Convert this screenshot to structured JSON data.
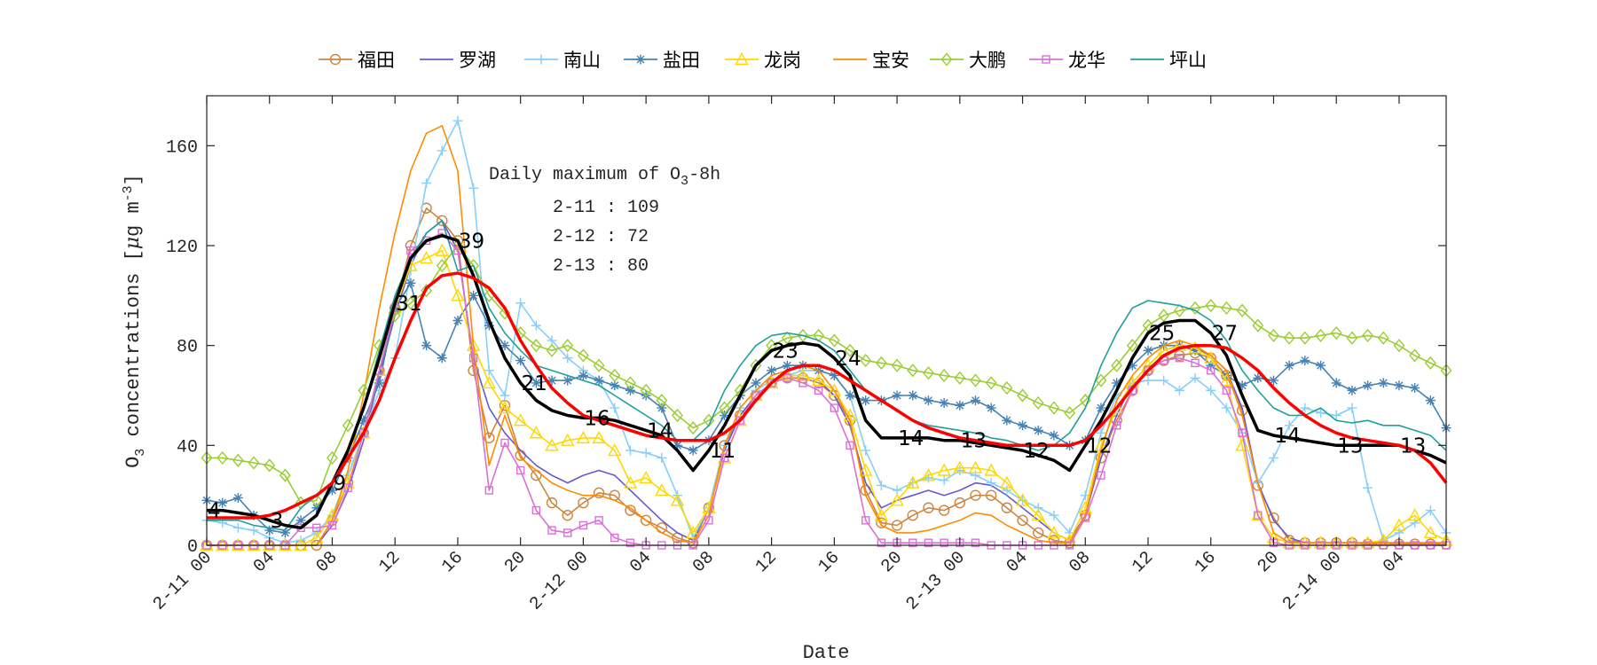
{
  "chart_data": {
    "type": "line",
    "xlabel": "Date",
    "ylabel": "O3 concentrations [μg m-3]",
    "ylabel_parts": {
      "main": "O",
      "sub": "3",
      "rest": " concentrations [",
      "mu": "μ",
      "unit": "g m",
      "sup": "-3",
      "end": "]"
    },
    "xlim_hours": [
      0,
      79
    ],
    "ylim": [
      0,
      180
    ],
    "yticks": [
      0,
      40,
      80,
      120,
      160
    ],
    "xtick_hours": [
      0,
      4,
      8,
      12,
      16,
      20,
      24,
      28,
      32,
      36,
      40,
      44,
      48,
      52,
      56,
      60,
      64,
      68,
      72,
      76
    ],
    "xtick_labels": [
      "2-11 00",
      "04",
      "08",
      "12",
      "16",
      "20",
      "2-12 00",
      "04",
      "08",
      "12",
      "16",
      "20",
      "2-13 00",
      "04",
      "08",
      "12",
      "16",
      "20",
      "2-14 00",
      "04"
    ],
    "x_start": "2-11 00",
    "x_step": "1 hour",
    "grid": false,
    "legend_position": "top, outside, horizontal",
    "series": [
      {
        "name": "福田",
        "color": "#cd853f",
        "marker": "circle",
        "values": [
          0,
          0,
          0,
          0,
          0,
          0,
          0,
          0,
          10,
          25,
          45,
          70,
          95,
          120,
          135,
          130,
          122,
          70,
          43,
          56,
          36,
          28,
          17,
          12,
          17,
          21,
          20,
          14,
          10,
          7,
          3,
          1,
          15,
          40,
          52,
          60,
          65,
          67,
          67,
          65,
          60,
          50,
          22,
          9,
          8,
          12,
          15,
          14,
          17,
          20,
          20,
          15,
          10,
          5,
          2,
          1,
          12,
          35,
          50,
          62,
          70,
          74,
          76,
          77,
          75,
          68,
          54,
          24,
          11,
          2,
          1,
          1,
          1,
          1,
          0.5,
          0.5,
          0.5,
          0.5,
          0.5,
          0.5
        ]
      },
      {
        "name": "罗湖",
        "color": "#6a5acd",
        "marker": "none",
        "values": [
          0,
          0,
          0,
          0,
          0,
          0,
          0,
          0,
          8,
          22,
          42,
          68,
          92,
          112,
          125,
          130,
          118,
          75,
          55,
          45,
          38,
          32,
          28,
          25,
          28,
          30,
          28,
          22,
          16,
          10,
          5,
          2,
          15,
          38,
          52,
          60,
          65,
          68,
          68,
          66,
          60,
          48,
          25,
          15,
          18,
          20,
          22,
          20,
          22,
          25,
          24,
          20,
          15,
          10,
          5,
          2,
          12,
          35,
          52,
          65,
          72,
          78,
          80,
          79,
          76,
          70,
          55,
          25,
          10,
          3,
          1,
          1,
          1,
          1,
          1,
          1,
          1,
          1,
          1,
          1
        ]
      },
      {
        "name": "南山",
        "color": "#87cefa",
        "marker": "plus",
        "values": [
          10,
          9,
          7,
          6,
          3,
          1,
          2,
          5,
          12,
          28,
          45,
          62,
          75,
          110,
          145,
          158,
          170,
          143,
          70,
          60,
          97,
          88,
          82,
          75,
          70,
          66,
          55,
          38,
          37,
          35,
          20,
          3,
          15,
          40,
          55,
          62,
          66,
          68,
          70,
          70,
          68,
          60,
          38,
          24,
          22,
          25,
          27,
          26,
          30,
          28,
          25,
          22,
          18,
          15,
          12,
          5,
          20,
          45,
          60,
          65,
          66,
          66,
          62,
          67,
          62,
          55,
          45,
          25,
          35,
          48,
          55,
          53,
          52,
          55,
          23,
          2,
          5,
          9,
          14,
          5
        ]
      },
      {
        "name": "盐田",
        "color": "#4682b4",
        "marker": "star",
        "values": [
          18,
          17,
          19,
          12,
          6,
          5,
          10,
          15,
          22,
          35,
          50,
          65,
          95,
          105,
          80,
          75,
          90,
          100,
          88,
          80,
          74,
          65,
          66,
          66,
          68,
          66,
          64,
          62,
          60,
          55,
          40,
          38,
          42,
          52,
          60,
          65,
          70,
          72,
          72,
          70,
          68,
          60,
          58,
          58,
          60,
          60,
          58,
          57,
          56,
          58,
          55,
          50,
          48,
          46,
          44,
          40,
          42,
          55,
          65,
          72,
          78,
          80,
          80,
          78,
          72,
          68,
          64,
          67,
          66,
          72,
          74,
          72,
          65,
          62,
          64,
          65,
          64,
          63,
          58,
          47
        ]
      },
      {
        "name": "龙岗",
        "color": "#ffd700",
        "marker": "triangle",
        "values": [
          0,
          0,
          0,
          0,
          0,
          0,
          0,
          3,
          12,
          25,
          45,
          70,
          95,
          112,
          115,
          118,
          100,
          80,
          65,
          55,
          50,
          45,
          40,
          42,
          43,
          43,
          38,
          25,
          27,
          22,
          18,
          5,
          15,
          35,
          50,
          60,
          65,
          68,
          68,
          66,
          62,
          52,
          30,
          12,
          18,
          25,
          28,
          30,
          31,
          31,
          30,
          25,
          18,
          12,
          5,
          2,
          15,
          40,
          55,
          65,
          72,
          78,
          80,
          79,
          75,
          66,
          40,
          12,
          3,
          1,
          1,
          1,
          1,
          1,
          1,
          2,
          8,
          12,
          5,
          2
        ]
      },
      {
        "name": "宝安",
        "color": "#ff8c00",
        "marker": "none",
        "values": [
          0,
          0,
          0,
          0,
          0,
          0,
          0,
          0,
          10,
          30,
          60,
          95,
          125,
          150,
          165,
          168,
          150,
          80,
          32,
          52,
          35,
          30,
          25,
          22,
          20,
          20,
          18,
          15,
          10,
          5,
          2,
          1,
          12,
          40,
          55,
          62,
          68,
          70,
          72,
          70,
          62,
          50,
          20,
          8,
          5,
          5,
          6,
          8,
          10,
          13,
          12,
          8,
          5,
          2,
          1,
          1,
          12,
          38,
          58,
          68,
          75,
          80,
          82,
          80,
          76,
          70,
          52,
          25,
          5,
          1,
          1,
          1,
          1,
          1,
          1,
          1,
          1,
          1,
          1,
          1
        ]
      },
      {
        "name": "大鹏",
        "color": "#9acd32",
        "marker": "diamond",
        "values": [
          35,
          35,
          34,
          33,
          32,
          28,
          17,
          18,
          35,
          48,
          62,
          80,
          92,
          97,
          102,
          112,
          120,
          112,
          100,
          93,
          85,
          80,
          78,
          80,
          76,
          72,
          68,
          65,
          62,
          58,
          52,
          47,
          50,
          55,
          62,
          72,
          80,
          83,
          84,
          84,
          82,
          78,
          74,
          73,
          72,
          70,
          69,
          68,
          67,
          66,
          65,
          63,
          60,
          57,
          55,
          53,
          58,
          66,
          72,
          80,
          88,
          92,
          94,
          95,
          96,
          95,
          94,
          88,
          84,
          83,
          83,
          84,
          85,
          83,
          84,
          83,
          80,
          76,
          73,
          70
        ]
      },
      {
        "name": "龙华",
        "color": "#da70d6",
        "marker": "square",
        "values": [
          0,
          0,
          0,
          0,
          0,
          0,
          7,
          7,
          8,
          23,
          45,
          70,
          95,
          118,
          122,
          125,
          118,
          75,
          22,
          41,
          30,
          14,
          6,
          5,
          8,
          10,
          3,
          1,
          0,
          0,
          0,
          0,
          10,
          35,
          50,
          60,
          65,
          67,
          65,
          62,
          55,
          40,
          10,
          1,
          1,
          1,
          1,
          1,
          1,
          1,
          0,
          0,
          0,
          0,
          0,
          0,
          11,
          28,
          48,
          62,
          70,
          74,
          75,
          73,
          70,
          62,
          45,
          12,
          1,
          0,
          0,
          0,
          0,
          0,
          0,
          0,
          0,
          0,
          0,
          0
        ]
      },
      {
        "name": "坪山",
        "color": "#20a09a",
        "marker": "none",
        "values": [
          10,
          10,
          10,
          8,
          7,
          6,
          15,
          20,
          25,
          38,
          55,
          78,
          100,
          115,
          125,
          130,
          110,
          112,
          95,
          85,
          78,
          72,
          70,
          68,
          66,
          64,
          60,
          56,
          52,
          48,
          42,
          42,
          48,
          62,
          72,
          80,
          84,
          85,
          84,
          82,
          78,
          70,
          62,
          58,
          54,
          50,
          48,
          47,
          46,
          45,
          43,
          42,
          40,
          38,
          40,
          45,
          55,
          72,
          85,
          95,
          98,
          97,
          96,
          94,
          90,
          82,
          70,
          62,
          55,
          52,
          52,
          55,
          50,
          49,
          50,
          48,
          48,
          46,
          44,
          38
        ]
      },
      {
        "color": "#000000",
        "marker": "none",
        "thick": true,
        "values": [
          14,
          14,
          13,
          12,
          10,
          8,
          7,
          12,
          25,
          38,
          55,
          75,
          97,
          115,
          122,
          124,
          122,
          108,
          90,
          75,
          65,
          58,
          54,
          52,
          51,
          51,
          50,
          48,
          46,
          44,
          38,
          30,
          38,
          48,
          60,
          72,
          78,
          80,
          81,
          80,
          75,
          68,
          50,
          43,
          43,
          43,
          43,
          42,
          42,
          41,
          40,
          39,
          38,
          36,
          34,
          30,
          40,
          50,
          62,
          75,
          85,
          89,
          90,
          90,
          85,
          76,
          60,
          46,
          44,
          43,
          42,
          41,
          40,
          40,
          40,
          40,
          40,
          38,
          36,
          33
        ]
      },
      {
        "color": "#ff0000",
        "marker": "none",
        "thick": true,
        "values": [
          11,
          11,
          11,
          11,
          12,
          14,
          17,
          20,
          25,
          35,
          45,
          58,
          75,
          90,
          103,
          108,
          109,
          107,
          103,
          95,
          82,
          72,
          63,
          57,
          52,
          50,
          48,
          46,
          44,
          43,
          42,
          42,
          42,
          45,
          50,
          58,
          65,
          70,
          72,
          72,
          70,
          66,
          62,
          58,
          54,
          50,
          47,
          45,
          43,
          42,
          41,
          40,
          40,
          40,
          40,
          40,
          42,
          48,
          55,
          63,
          70,
          76,
          79,
          80,
          80,
          79,
          75,
          70,
          63,
          57,
          52,
          48,
          45,
          43,
          42,
          41,
          40,
          38,
          33,
          25
        ]
      }
    ],
    "point_labels": {
      "hours": [
        0,
        4,
        8,
        12,
        16,
        20,
        24,
        28,
        32,
        36,
        40,
        44,
        48,
        52,
        56,
        60,
        64,
        68,
        72,
        76
      ],
      "texts": [
        "4",
        "3",
        "9",
        "31",
        "39",
        "21",
        "16",
        "14",
        "11",
        "23",
        "24",
        "14",
        "13",
        "12",
        "12",
        "25",
        "27",
        "14",
        "13",
        "13"
      ]
    },
    "annotation": {
      "title_main": "Daily maximum of O",
      "title_sub": "3",
      "title_end": "-8h",
      "lines": [
        "2-11 : 109",
        "2-12 : 72",
        "2-13 : 80"
      ]
    }
  }
}
